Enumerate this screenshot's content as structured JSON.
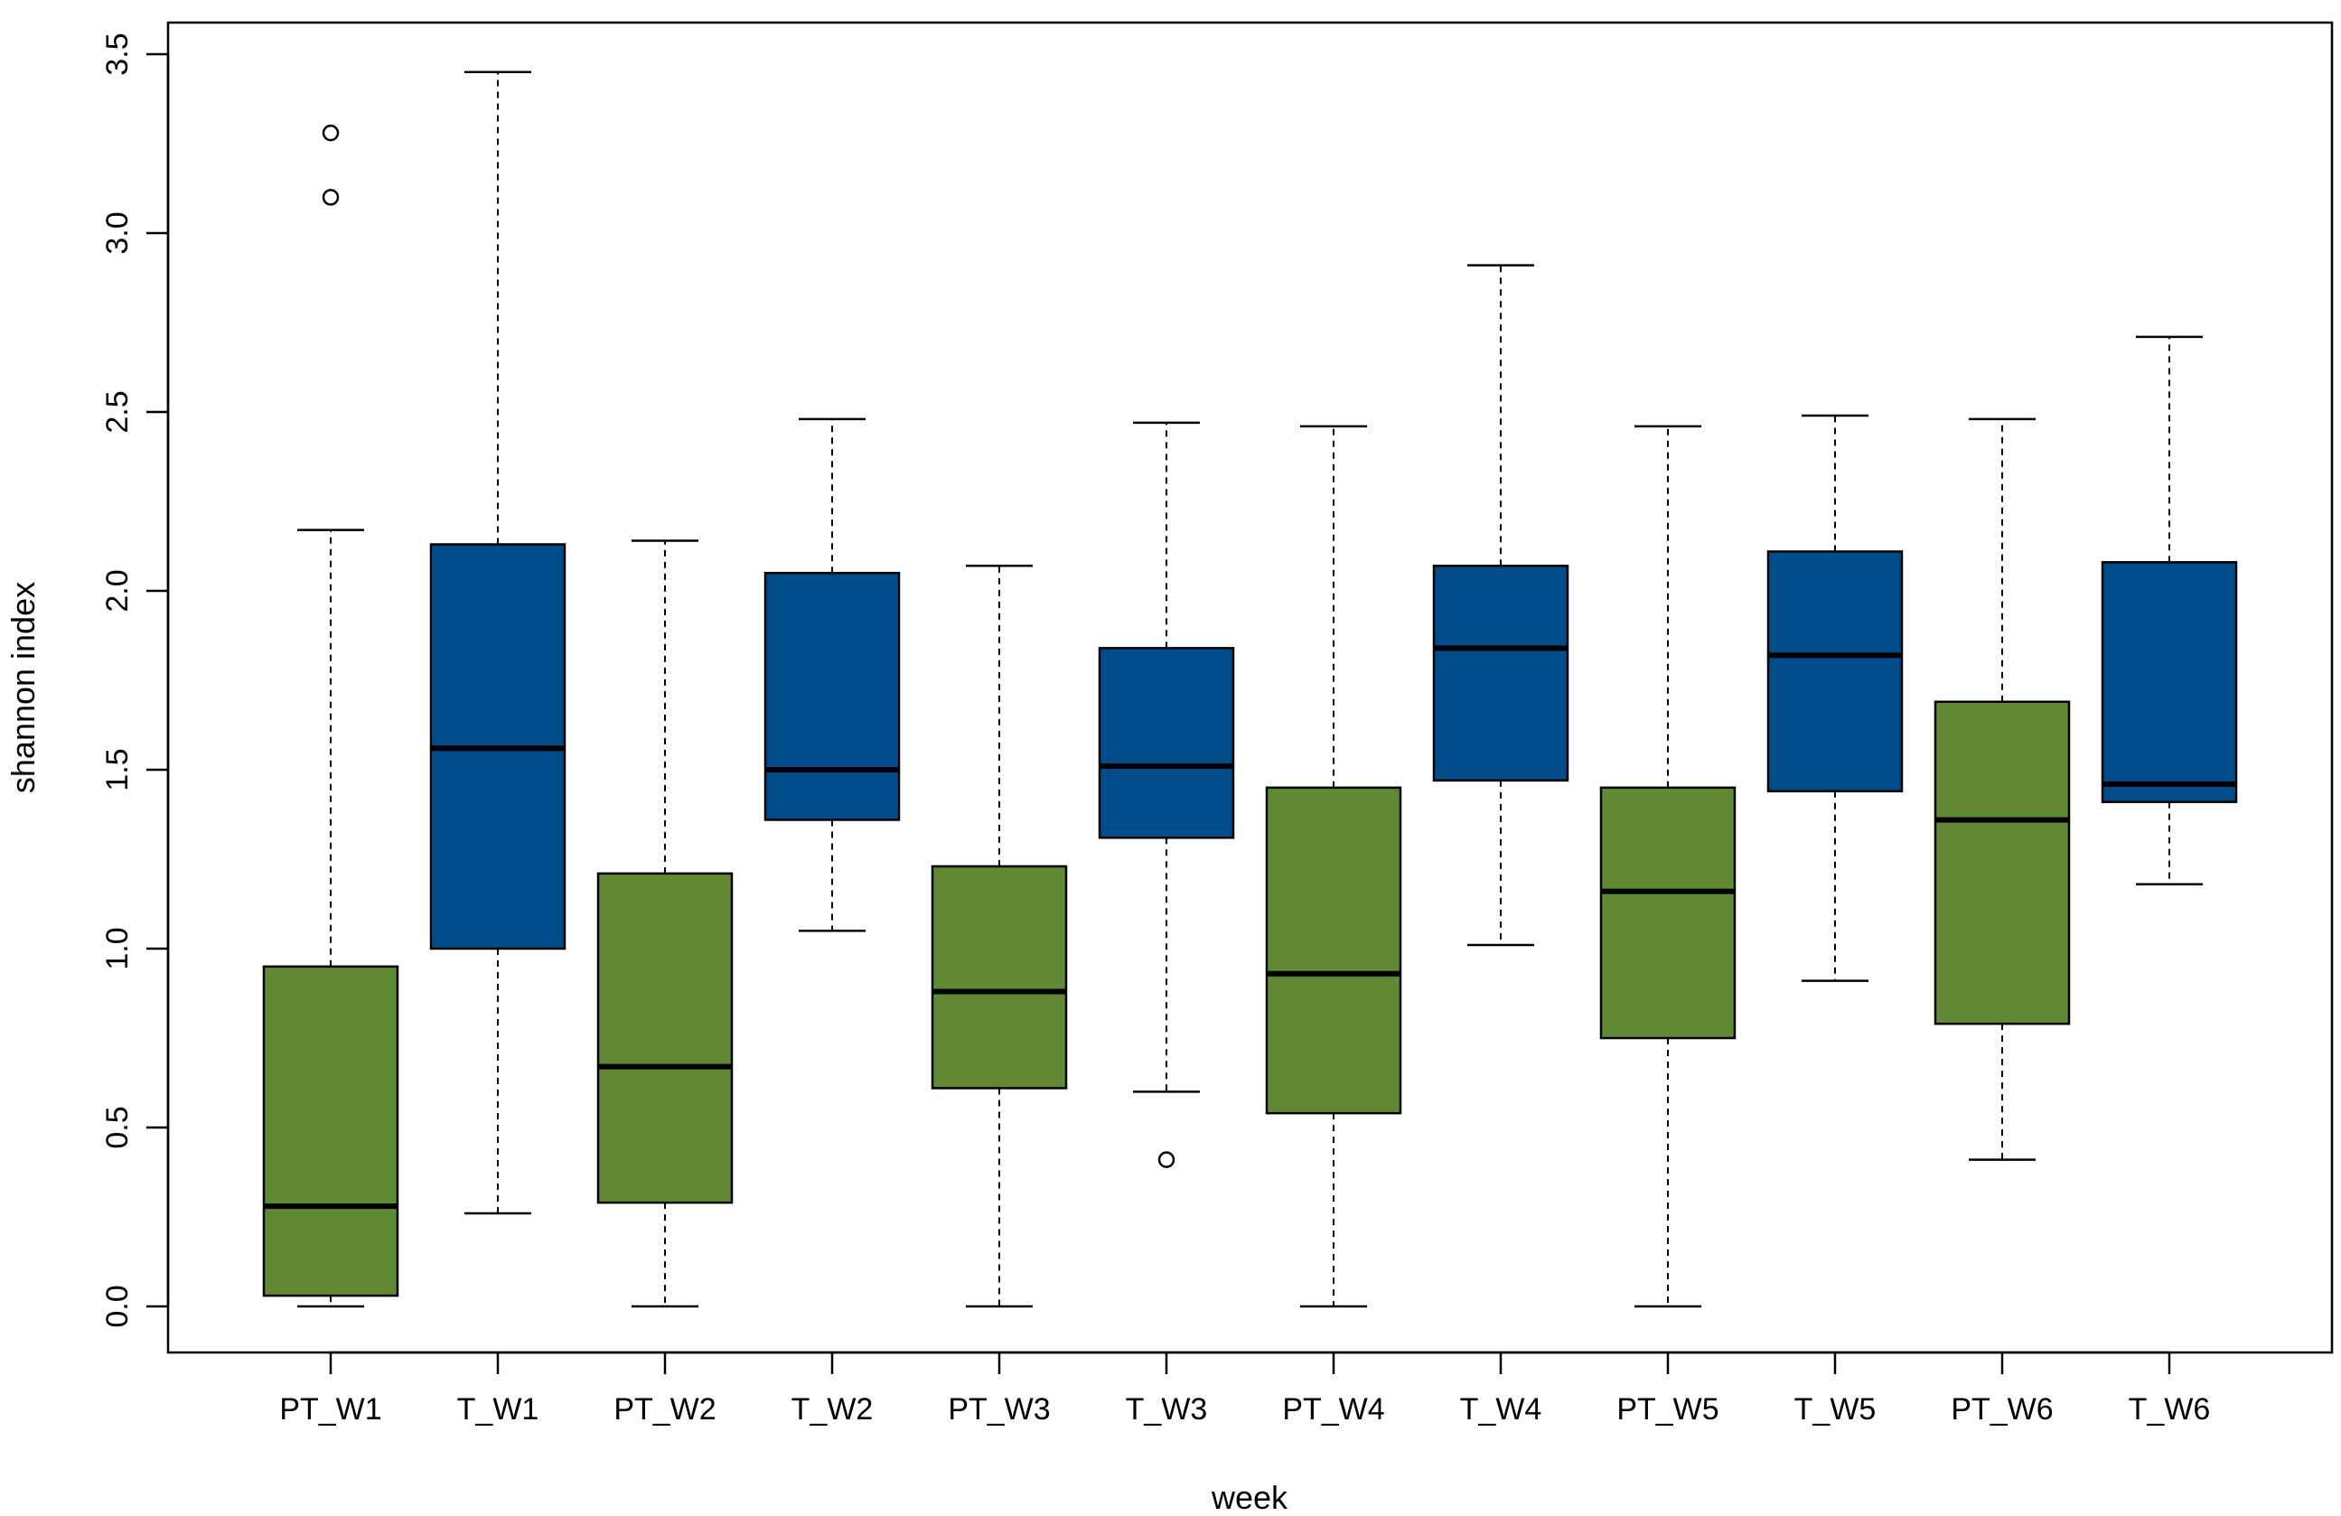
{
  "chart_data": {
    "type": "boxplot",
    "title": "",
    "xlabel": "week",
    "ylabel": "shannon index",
    "ylim": [
      -0.13,
      3.6
    ],
    "yticks": [
      0.0,
      0.5,
      1.0,
      1.5,
      2.0,
      2.5,
      3.0,
      3.5
    ],
    "ytick_labels": [
      "0.0",
      "0.5",
      "1.0",
      "1.5",
      "2.0",
      "2.5",
      "3.0",
      "3.5"
    ],
    "colors": {
      "PT": "#5F8A33",
      "T": "#004C8B"
    },
    "groups": [
      {
        "label": "PT_W1",
        "kind": "PT",
        "whisker_low": 0.0,
        "q1": 0.03,
        "median": 0.28,
        "q3": 0.95,
        "whisker_high": 2.17,
        "outliers": [
          3.1,
          3.28
        ]
      },
      {
        "label": "T_W1",
        "kind": "T",
        "whisker_low": 0.26,
        "q1": 1.0,
        "median": 1.56,
        "q3": 2.13,
        "whisker_high": 3.45,
        "outliers": []
      },
      {
        "label": "PT_W2",
        "kind": "PT",
        "whisker_low": 0.0,
        "q1": 0.29,
        "median": 0.67,
        "q3": 1.21,
        "whisker_high": 2.14,
        "outliers": []
      },
      {
        "label": "T_W2",
        "kind": "T",
        "whisker_low": 1.05,
        "q1": 1.36,
        "median": 1.5,
        "q3": 2.05,
        "whisker_high": 2.48,
        "outliers": []
      },
      {
        "label": "PT_W3",
        "kind": "PT",
        "whisker_low": 0.0,
        "q1": 0.61,
        "median": 0.88,
        "q3": 1.23,
        "whisker_high": 2.07,
        "outliers": []
      },
      {
        "label": "T_W3",
        "kind": "T",
        "whisker_low": 0.6,
        "q1": 1.31,
        "median": 1.51,
        "q3": 1.84,
        "whisker_high": 2.47,
        "outliers": [
          0.41
        ]
      },
      {
        "label": "PT_W4",
        "kind": "PT",
        "whisker_low": 0.0,
        "q1": 0.54,
        "median": 0.93,
        "q3": 1.45,
        "whisker_high": 2.46,
        "outliers": []
      },
      {
        "label": "T_W4",
        "kind": "T",
        "whisker_low": 1.01,
        "q1": 1.47,
        "median": 1.84,
        "q3": 2.07,
        "whisker_high": 2.91,
        "outliers": []
      },
      {
        "label": "PT_W5",
        "kind": "PT",
        "whisker_low": 0.0,
        "q1": 0.75,
        "median": 1.16,
        "q3": 1.45,
        "whisker_high": 2.46,
        "outliers": []
      },
      {
        "label": "T_W5",
        "kind": "T",
        "whisker_low": 0.91,
        "q1": 1.44,
        "median": 1.82,
        "q3": 2.11,
        "whisker_high": 2.49,
        "outliers": []
      },
      {
        "label": "PT_W6",
        "kind": "PT",
        "whisker_low": 0.41,
        "q1": 0.79,
        "median": 1.36,
        "q3": 1.69,
        "whisker_high": 2.48,
        "outliers": []
      },
      {
        "label": "T_W6",
        "kind": "T",
        "whisker_low": 1.18,
        "q1": 1.41,
        "median": 1.46,
        "q3": 2.08,
        "whisker_high": 2.71,
        "outliers": []
      }
    ]
  }
}
